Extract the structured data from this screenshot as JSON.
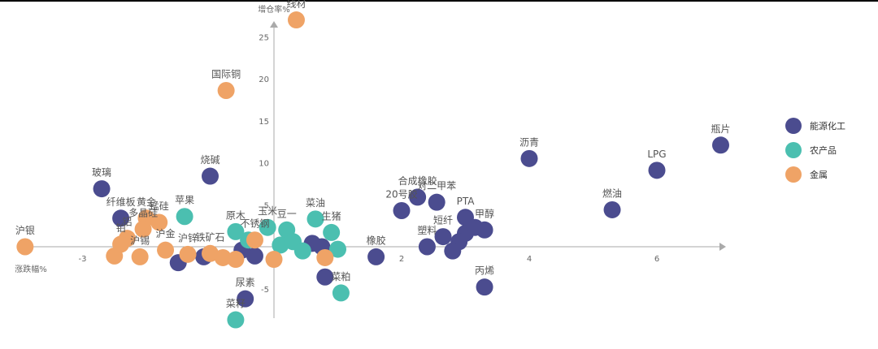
{
  "chart_data": {
    "type": "scatter",
    "xlabel": "涨跌幅%",
    "ylabel": "增仓率%",
    "xlim": [
      -4,
      7
    ],
    "ylim": [
      -8,
      28
    ],
    "x_ticks": [
      -3,
      2,
      4,
      6
    ],
    "y_ticks": [
      -5,
      5,
      10,
      15,
      20,
      25
    ],
    "grid": false,
    "legend_position": "right",
    "series": [
      {
        "name": "能源化工",
        "color": "#4B4C8F",
        "points": [
          {
            "x": 7.0,
            "y": 12.1,
            "label": "瓶片"
          },
          {
            "x": 6.0,
            "y": 9.1,
            "label": "LPG"
          },
          {
            "x": 4.0,
            "y": 10.5,
            "label": "沥青"
          },
          {
            "x": 5.3,
            "y": 4.4,
            "label": "燃油"
          },
          {
            "x": 2.25,
            "y": 5.9,
            "label": "合成橡胶"
          },
          {
            "x": 2.0,
            "y": 4.3,
            "label": "20号胶"
          },
          {
            "x": 2.55,
            "y": 5.3,
            "label": "对二甲苯"
          },
          {
            "x": 3.0,
            "y": 3.5,
            "label": "PTA"
          },
          {
            "x": 3.3,
            "y": 2.0,
            "label": "甲醇"
          },
          {
            "x": 2.65,
            "y": 1.2,
            "label": "短纤"
          },
          {
            "x": 2.4,
            "y": 0.0,
            "label": "塑料"
          },
          {
            "x": 1.6,
            "y": -1.2,
            "label": "橡胶"
          },
          {
            "x": 3.3,
            "y": -4.8,
            "label": "丙烯"
          },
          {
            "x": 3.0,
            "y": 1.6,
            "label": ""
          },
          {
            "x": 2.9,
            "y": 0.6,
            "label": ""
          },
          {
            "x": 2.8,
            "y": -0.5,
            "label": ""
          },
          {
            "x": 3.15,
            "y": 2.3,
            "label": ""
          },
          {
            "x": -2.7,
            "y": 6.9,
            "label": "玻璃"
          },
          {
            "x": -2.4,
            "y": 3.4,
            "label": "纤维板"
          },
          {
            "x": -1.0,
            "y": 8.4,
            "label": "烧碱"
          },
          {
            "x": -1.5,
            "y": -1.9,
            "label": ""
          },
          {
            "x": -1.1,
            "y": -1.2,
            "label": ""
          },
          {
            "x": -0.5,
            "y": -0.4,
            "label": ""
          },
          {
            "x": -0.3,
            "y": -1.1,
            "label": ""
          },
          {
            "x": 0.6,
            "y": 0.4,
            "label": ""
          },
          {
            "x": 0.75,
            "y": 0.0,
            "label": ""
          },
          {
            "x": 0.8,
            "y": -3.6,
            "label": ""
          },
          {
            "x": -0.45,
            "y": -6.2,
            "label": "尿素"
          }
        ]
      },
      {
        "name": "农产品",
        "color": "#4BBFB0",
        "points": [
          {
            "x": 0.65,
            "y": 3.3,
            "label": "菜油"
          },
          {
            "x": -1.4,
            "y": 3.6,
            "label": "苹果"
          },
          {
            "x": -0.6,
            "y": 1.8,
            "label": "原木"
          },
          {
            "x": -0.1,
            "y": 2.3,
            "label": "玉米"
          },
          {
            "x": 0.2,
            "y": 2.0,
            "label": "豆一"
          },
          {
            "x": 0.9,
            "y": 1.7,
            "label": "生猪"
          },
          {
            "x": 1.0,
            "y": -0.3,
            "label": ""
          },
          {
            "x": 0.1,
            "y": 0.2,
            "label": ""
          },
          {
            "x": 0.3,
            "y": 0.6,
            "label": ""
          },
          {
            "x": 0.45,
            "y": -0.5,
            "label": ""
          },
          {
            "x": -0.4,
            "y": 0.8,
            "label": ""
          },
          {
            "x": 1.05,
            "y": -5.5,
            "label": "菜粕"
          },
          {
            "x": -0.6,
            "y": -8.7,
            "label": "菜籽"
          }
        ]
      },
      {
        "name": "金属",
        "color": "#EFA366",
        "points": [
          {
            "x": 0.35,
            "y": 27.0,
            "label": "线材"
          },
          {
            "x": -0.75,
            "y": 18.6,
            "label": "国际铜"
          },
          {
            "x": -3.9,
            "y": 0.0,
            "label": "沪银"
          },
          {
            "x": -2.0,
            "y": 3.4,
            "label": "黄金"
          },
          {
            "x": -1.8,
            "y": 2.9,
            "label": "锰硅"
          },
          {
            "x": -2.05,
            "y": 2.1,
            "label": "多晶硅"
          },
          {
            "x": -2.3,
            "y": 1.0,
            "label": "铝"
          },
          {
            "x": -2.4,
            "y": 0.3,
            "label": "铂"
          },
          {
            "x": -2.5,
            "y": -1.1,
            "label": ""
          },
          {
            "x": -2.1,
            "y": -1.2,
            "label": "沪锡"
          },
          {
            "x": -1.7,
            "y": -0.4,
            "label": "沪金"
          },
          {
            "x": -1.35,
            "y": -0.9,
            "label": "沪锌"
          },
          {
            "x": -1.0,
            "y": -0.8,
            "label": "铁矿石"
          },
          {
            "x": -0.8,
            "y": -1.3,
            "label": ""
          },
          {
            "x": -0.6,
            "y": -1.5,
            "label": ""
          },
          {
            "x": -0.3,
            "y": 0.8,
            "label": "不锈钢"
          },
          {
            "x": 0.0,
            "y": -1.5,
            "label": ""
          },
          {
            "x": 0.8,
            "y": -1.3,
            "label": ""
          }
        ]
      }
    ]
  }
}
